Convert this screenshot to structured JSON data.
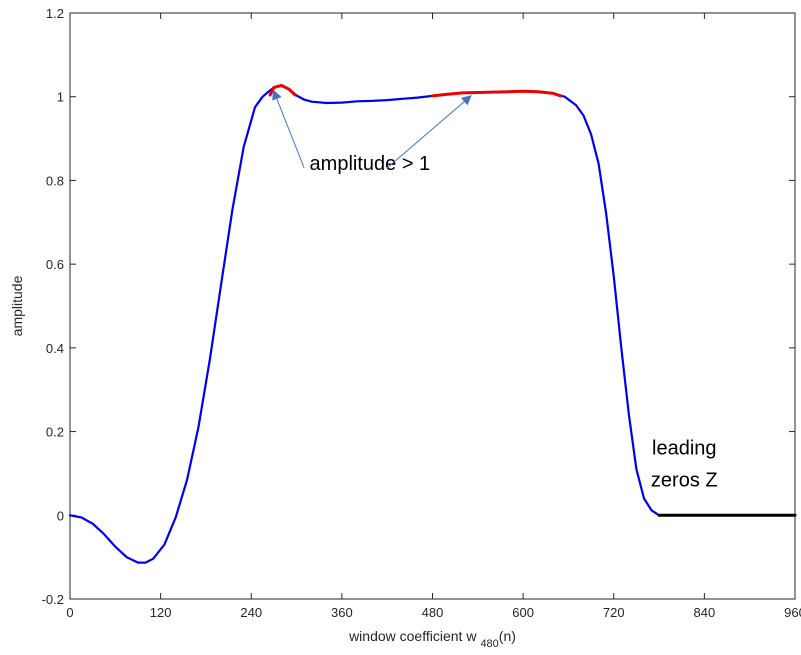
{
  "chart_data": {
    "type": "line",
    "title": "",
    "xlabel": "window coefficient w",
    "xlabel_subscript": "480",
    "xlabel_suffix": "(n)",
    "ylabel": "amplitude",
    "xlim": [
      0,
      960
    ],
    "ylim": [
      -0.2,
      1.2
    ],
    "xticks": [
      0,
      120,
      240,
      360,
      480,
      600,
      720,
      840,
      960
    ],
    "yticks": [
      -0.2,
      0,
      0.2,
      0.4,
      0.6,
      0.8,
      1,
      1.2
    ],
    "xtick_labels": [
      "0",
      "120",
      "240",
      "360",
      "480",
      "600",
      "720",
      "840",
      "960"
    ],
    "ytick_labels": [
      "-0.2",
      "0",
      "0.2",
      "0.4",
      "0.6",
      "0.8",
      "1",
      "1.2"
    ],
    "grid": false,
    "series": [
      {
        "color": "#0000ee",
        "x": [
          0,
          15,
          30,
          45,
          60,
          75,
          90,
          100,
          110,
          125,
          140,
          155,
          170,
          185,
          200,
          215,
          230,
          245,
          255,
          265,
          270,
          280,
          290,
          300,
          310,
          320,
          340,
          360,
          380,
          400,
          420,
          440,
          460,
          480,
          500,
          520,
          540,
          560,
          580,
          600,
          620,
          640,
          655,
          670,
          680,
          690,
          700,
          710,
          720,
          730,
          740,
          750,
          760,
          770,
          780
        ],
        "y": [
          0.0,
          -0.005,
          -0.02,
          -0.045,
          -0.075,
          -0.1,
          -0.113,
          -0.113,
          -0.104,
          -0.07,
          -0.005,
          0.085,
          0.21,
          0.37,
          0.55,
          0.73,
          0.88,
          0.975,
          1.0,
          1.015,
          1.022,
          1.027,
          1.018,
          1.003,
          0.993,
          0.988,
          0.985,
          0.986,
          0.989,
          0.99,
          0.992,
          0.995,
          0.998,
          1.002,
          1.006,
          1.009,
          1.01,
          1.011,
          1.012,
          1.013,
          1.012,
          1.008,
          1.0,
          0.98,
          0.955,
          0.91,
          0.84,
          0.72,
          0.57,
          0.4,
          0.24,
          0.11,
          0.04,
          0.012,
          0.0
        ]
      },
      {
        "color": "#ee0000",
        "x": [
          265,
          270,
          280,
          290,
          298
        ],
        "y": [
          1.004,
          1.022,
          1.027,
          1.018,
          1.004
        ]
      },
      {
        "color": "#ee0000",
        "x": [
          480,
          500,
          520,
          540,
          560,
          580,
          600,
          620,
          640,
          650
        ],
        "y": [
          1.002,
          1.006,
          1.009,
          1.01,
          1.011,
          1.012,
          1.013,
          1.012,
          1.008,
          1.002
        ]
      },
      {
        "color": "#000000",
        "x": [
          780,
          960
        ],
        "y": [
          0.0,
          0.0
        ]
      }
    ],
    "annotations": [
      {
        "text": "amplitude > 1",
        "x": 360,
        "y": 0.76,
        "arrows_to": [
          [
            270,
            1.027
          ],
          [
            530,
            1.015
          ]
        ],
        "arrow_from": [
          [
            310,
            0.83
          ],
          [
            420,
            0.83
          ]
        ]
      },
      {
        "text_lines": [
          "leading",
          "zeros Z"
        ],
        "x": 820,
        "y": 0.14
      }
    ]
  }
}
